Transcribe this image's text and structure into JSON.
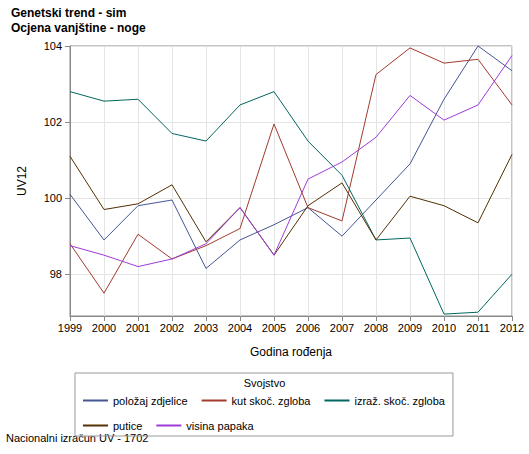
{
  "chart_data": {
    "type": "line",
    "title": "Genetski trend - sim",
    "subtitle": "Ocjena vanjštine - noge",
    "x_label": "Godina rođenja",
    "y_label": "UV12",
    "legend_title": "Svojstvo",
    "annotation": "Nacionalni izračun UV - 1702",
    "categories": [
      "1999",
      "2000",
      "2001",
      "2002",
      "2003",
      "2004",
      "2005",
      "2006",
      "2007",
      "2008",
      "2009",
      "2010",
      "2011",
      "2012"
    ],
    "series": [
      {
        "name": "položaj zdjelice",
        "color": "#445694",
        "values": [
          100.1,
          98.9,
          99.8,
          99.95,
          98.15,
          98.9,
          99.3,
          99.75,
          99.0,
          99.95,
          100.9,
          102.6,
          104.0,
          103.35
        ]
      },
      {
        "name": "kut skoč. zgloba",
        "color": "#a23a2e",
        "values": [
          98.8,
          97.5,
          99.05,
          98.4,
          98.75,
          99.2,
          101.95,
          99.75,
          99.4,
          103.25,
          103.95,
          103.55,
          103.65,
          102.45
        ]
      },
      {
        "name": "izraž. skoč. zgloba",
        "color": "#01665e",
        "values": [
          102.8,
          102.55,
          102.6,
          101.7,
          101.5,
          102.45,
          102.8,
          101.5,
          100.6,
          98.9,
          98.95,
          96.95,
          97.0,
          98.0
        ]
      },
      {
        "name": "putice",
        "color": "#543005",
        "values": [
          101.1,
          99.7,
          99.85,
          100.35,
          98.85,
          99.75,
          98.5,
          99.8,
          100.4,
          98.9,
          100.05,
          99.8,
          99.35,
          101.15
        ]
      },
      {
        "name": "visina papaka",
        "color": "#9d3cdb",
        "values": [
          98.75,
          98.5,
          98.2,
          98.4,
          98.8,
          99.75,
          98.5,
          100.5,
          100.95,
          101.6,
          102.7,
          102.05,
          102.45,
          103.75
        ]
      }
    ],
    "ylim": [
      96.9,
      104
    ],
    "yticks": [
      98,
      100,
      102,
      104
    ],
    "grid": true,
    "legend": "bottom",
    "marker": "none",
    "line_style": "solid"
  }
}
